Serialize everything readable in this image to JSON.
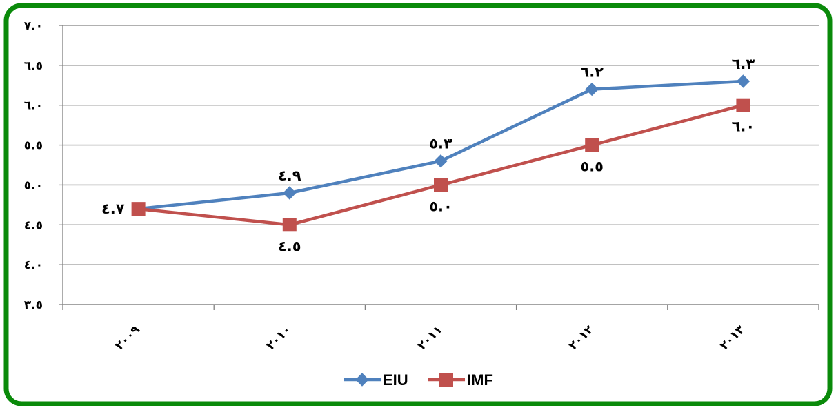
{
  "chart_data": {
    "type": "line",
    "categories": [
      "٢٠٠٩",
      "٢٠١٠",
      "٢٠١١",
      "٢٠١٢",
      "٢٠١٣"
    ],
    "series": [
      {
        "name": "EIU",
        "color": "#4F81BD",
        "marker": "diamond",
        "values": [
          4.7,
          4.9,
          5.3,
          6.2,
          6.3
        ],
        "labels": [
          "٤.٧",
          "٤.٩",
          "٥.٣",
          "٦.٢",
          "٦.٣"
        ]
      },
      {
        "name": "IMF",
        "color": "#C0504D",
        "marker": "square",
        "values": [
          4.7,
          4.5,
          5.0,
          5.5,
          6.0
        ],
        "labels": [
          "",
          "٤.٥",
          "٥.٠",
          "٥.٥",
          "٦.٠"
        ]
      }
    ],
    "ylim": [
      3.5,
      7.0
    ],
    "yticks": [
      3.5,
      4.0,
      4.5,
      5.0,
      5.5,
      6.0,
      6.5,
      7.0
    ],
    "ytick_labels": [
      "٣.٥",
      "٤.٠",
      "٤.٥",
      "٥.٠",
      "٥.٥",
      "٦.٠",
      "٦.٥",
      "٧.٠"
    ],
    "grid": true,
    "legend_position": "bottom",
    "title": "",
    "xlabel": "",
    "ylabel": ""
  },
  "colors": {
    "border": "#0A8A0A",
    "gridline": "#808080"
  }
}
